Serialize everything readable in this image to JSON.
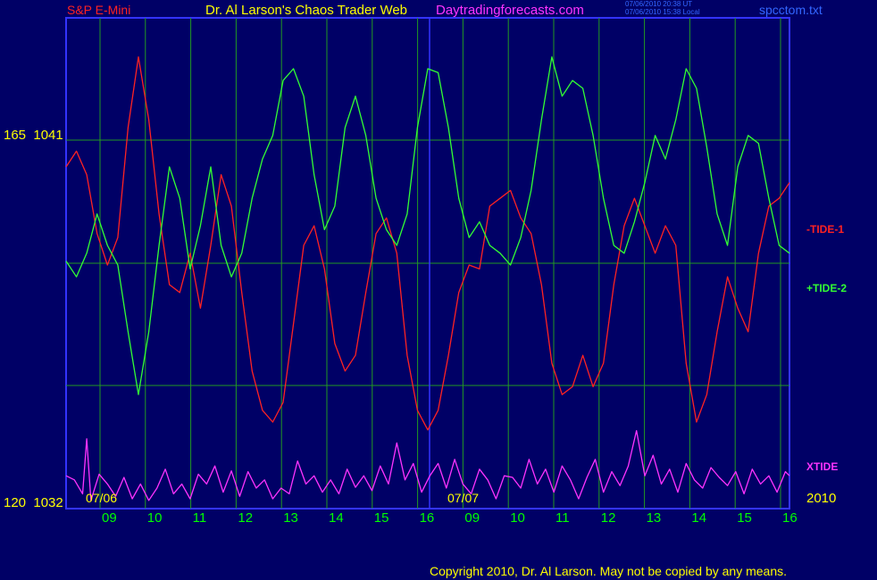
{
  "header": {
    "symbol": "S&P E-Mini",
    "title": "Dr. Al Larson's Chaos Trader Web",
    "site": "Daytradingforecasts.com",
    "stamp_ut": "07/06/2010 20:38 UT",
    "stamp_local": "07/06/2010 15:38 Local",
    "filename": "spcctom.txt"
  },
  "footer": {
    "copyright": "Copyright 2010, Dr. Al Larson. May not be copied by any means."
  },
  "colors": {
    "background": "#000066",
    "plot_border": "#3333ff",
    "grid": "#229922",
    "tide1": "#ff2222",
    "tide2": "#33ff33",
    "xtide": "#ff33ff",
    "tick_label": "#00ff00",
    "price_label": "#ffff00",
    "symbol": "#ff2222",
    "title": "#ffff00",
    "site": "#ff33ff",
    "stamp": "#3366ff",
    "filename": "#3366ff"
  },
  "chart_data": {
    "type": "line",
    "y_axis_labels": [
      {
        "code": "165",
        "price": "1041"
      },
      {
        "code": "120",
        "price": "1032"
      }
    ],
    "date_labels": [
      "07/06",
      "07/07"
    ],
    "year_label": "2010",
    "x_tick_labels": [
      "09",
      "10",
      "11",
      "12",
      "13",
      "14",
      "15",
      "16",
      "09",
      "10",
      "11",
      "12",
      "13",
      "14",
      "15",
      "16"
    ],
    "series": [
      {
        "name": "-TIDE-1",
        "y_range": [
          0,
          100
        ],
        "values": [
          [
            0,
            70
          ],
          [
            2.5,
            74
          ],
          [
            5,
            68
          ],
          [
            7.5,
            53
          ],
          [
            10,
            45
          ],
          [
            12.5,
            52
          ],
          [
            15,
            80
          ],
          [
            17.5,
            98
          ],
          [
            20,
            82
          ],
          [
            22.5,
            58
          ],
          [
            25,
            40
          ],
          [
            27.5,
            38
          ],
          [
            30,
            48
          ],
          [
            32.5,
            34
          ],
          [
            35,
            50
          ],
          [
            37.5,
            68
          ],
          [
            40,
            60
          ],
          [
            42.5,
            38
          ],
          [
            45,
            18
          ],
          [
            47.5,
            8
          ],
          [
            50,
            5
          ],
          [
            52.5,
            10
          ],
          [
            55,
            30
          ],
          [
            57.5,
            50
          ],
          [
            60,
            55
          ],
          [
            62.5,
            44
          ],
          [
            65,
            25
          ],
          [
            67.5,
            18
          ],
          [
            70,
            22
          ],
          [
            72.5,
            38
          ],
          [
            75,
            53
          ],
          [
            77.5,
            57
          ],
          [
            80,
            48
          ],
          [
            82.5,
            22
          ],
          [
            85,
            8
          ],
          [
            87.5,
            3
          ],
          [
            90,
            8
          ],
          [
            92.5,
            22
          ],
          [
            95,
            38
          ],
          [
            97.5,
            45
          ],
          [
            100,
            44
          ],
          [
            102.5,
            60
          ],
          [
            105,
            62
          ],
          [
            107.5,
            64
          ],
          [
            110,
            57
          ],
          [
            112.5,
            53
          ],
          [
            115,
            40
          ],
          [
            117.5,
            20
          ],
          [
            120,
            12
          ],
          [
            122.5,
            14
          ],
          [
            125,
            22
          ],
          [
            127.5,
            14
          ],
          [
            130,
            20
          ],
          [
            132.5,
            40
          ],
          [
            135,
            55
          ],
          [
            137.5,
            62
          ],
          [
            140,
            55
          ],
          [
            142.5,
            48
          ],
          [
            145,
            55
          ],
          [
            147.5,
            50
          ],
          [
            150,
            20
          ],
          [
            152.5,
            5
          ],
          [
            155,
            12
          ],
          [
            157.5,
            28
          ],
          [
            160,
            42
          ],
          [
            162.5,
            34
          ],
          [
            165,
            28
          ],
          [
            167.5,
            48
          ],
          [
            170,
            60
          ],
          [
            172.5,
            62
          ],
          [
            175,
            66
          ]
        ]
      },
      {
        "name": "+TIDE-2",
        "y_range": [
          0,
          100
        ],
        "values": [
          [
            0,
            46
          ],
          [
            2.5,
            42
          ],
          [
            5,
            48
          ],
          [
            7.5,
            58
          ],
          [
            10,
            50
          ],
          [
            12.5,
            45
          ],
          [
            15,
            28
          ],
          [
            17.5,
            12
          ],
          [
            20,
            28
          ],
          [
            22.5,
            50
          ],
          [
            25,
            70
          ],
          [
            27.5,
            62
          ],
          [
            30,
            44
          ],
          [
            32.5,
            55
          ],
          [
            35,
            70
          ],
          [
            37.5,
            50
          ],
          [
            40,
            42
          ],
          [
            42.5,
            48
          ],
          [
            45,
            62
          ],
          [
            47.5,
            72
          ],
          [
            50,
            78
          ],
          [
            52.5,
            92
          ],
          [
            55,
            95
          ],
          [
            57.5,
            88
          ],
          [
            60,
            68
          ],
          [
            62.5,
            54
          ],
          [
            65,
            60
          ],
          [
            67.5,
            80
          ],
          [
            70,
            88
          ],
          [
            72.5,
            78
          ],
          [
            75,
            62
          ],
          [
            77.5,
            54
          ],
          [
            80,
            50
          ],
          [
            82.5,
            58
          ],
          [
            85,
            80
          ],
          [
            87.5,
            95
          ],
          [
            90,
            94
          ],
          [
            92.5,
            80
          ],
          [
            95,
            62
          ],
          [
            97.5,
            52
          ],
          [
            100,
            56
          ],
          [
            102.5,
            50
          ],
          [
            105,
            48
          ],
          [
            107.5,
            45
          ],
          [
            110,
            52
          ],
          [
            112.5,
            64
          ],
          [
            115,
            82
          ],
          [
            117.5,
            98
          ],
          [
            120,
            88
          ],
          [
            122.5,
            92
          ],
          [
            125,
            90
          ],
          [
            127.5,
            78
          ],
          [
            130,
            62
          ],
          [
            132.5,
            50
          ],
          [
            135,
            48
          ],
          [
            137.5,
            56
          ],
          [
            140,
            66
          ],
          [
            142.5,
            78
          ],
          [
            145,
            72
          ],
          [
            147.5,
            82
          ],
          [
            150,
            95
          ],
          [
            152.5,
            90
          ],
          [
            155,
            75
          ],
          [
            157.5,
            58
          ],
          [
            160,
            50
          ],
          [
            162.5,
            70
          ],
          [
            165,
            78
          ],
          [
            167.5,
            76
          ],
          [
            170,
            62
          ],
          [
            172.5,
            50
          ],
          [
            175,
            48
          ]
        ]
      },
      {
        "name": "XTIDE",
        "y_range": [
          0,
          100
        ],
        "values": [
          [
            0,
            40
          ],
          [
            2,
            35
          ],
          [
            4,
            18
          ],
          [
            5,
            85
          ],
          [
            6,
            10
          ],
          [
            8,
            42
          ],
          [
            10,
            30
          ],
          [
            12,
            15
          ],
          [
            14,
            38
          ],
          [
            16,
            12
          ],
          [
            18,
            30
          ],
          [
            20,
            10
          ],
          [
            22,
            25
          ],
          [
            24,
            48
          ],
          [
            26,
            18
          ],
          [
            28,
            30
          ],
          [
            30,
            12
          ],
          [
            32,
            42
          ],
          [
            34,
            30
          ],
          [
            36,
            52
          ],
          [
            38,
            20
          ],
          [
            40,
            46
          ],
          [
            42,
            15
          ],
          [
            44,
            45
          ],
          [
            46,
            25
          ],
          [
            48,
            35
          ],
          [
            50,
            12
          ],
          [
            52,
            25
          ],
          [
            54,
            18
          ],
          [
            56,
            58
          ],
          [
            58,
            30
          ],
          [
            60,
            40
          ],
          [
            62,
            20
          ],
          [
            64,
            35
          ],
          [
            66,
            18
          ],
          [
            68,
            48
          ],
          [
            70,
            26
          ],
          [
            72,
            40
          ],
          [
            74,
            22
          ],
          [
            76,
            52
          ],
          [
            78,
            30
          ],
          [
            80,
            80
          ],
          [
            82,
            35
          ],
          [
            84,
            55
          ],
          [
            86,
            20
          ],
          [
            88,
            40
          ],
          [
            90,
            55
          ],
          [
            92,
            25
          ],
          [
            94,
            60
          ],
          [
            96,
            30
          ],
          [
            98,
            18
          ],
          [
            100,
            48
          ],
          [
            102,
            35
          ],
          [
            104,
            12
          ],
          [
            106,
            40
          ],
          [
            108,
            38
          ],
          [
            110,
            25
          ],
          [
            112,
            60
          ],
          [
            114,
            30
          ],
          [
            116,
            48
          ],
          [
            118,
            20
          ],
          [
            120,
            52
          ],
          [
            122,
            35
          ],
          [
            124,
            12
          ],
          [
            126,
            38
          ],
          [
            128,
            60
          ],
          [
            130,
            20
          ],
          [
            132,
            45
          ],
          [
            134,
            28
          ],
          [
            136,
            52
          ],
          [
            138,
            95
          ],
          [
            140,
            40
          ],
          [
            142,
            65
          ],
          [
            144,
            30
          ],
          [
            146,
            48
          ],
          [
            148,
            20
          ],
          [
            150,
            55
          ],
          [
            152,
            35
          ],
          [
            154,
            25
          ],
          [
            156,
            50
          ],
          [
            158,
            38
          ],
          [
            160,
            28
          ],
          [
            162,
            45
          ],
          [
            164,
            18
          ],
          [
            166,
            48
          ],
          [
            168,
            30
          ],
          [
            170,
            40
          ],
          [
            172,
            20
          ],
          [
            174,
            45
          ],
          [
            175,
            40
          ]
        ]
      }
    ]
  }
}
